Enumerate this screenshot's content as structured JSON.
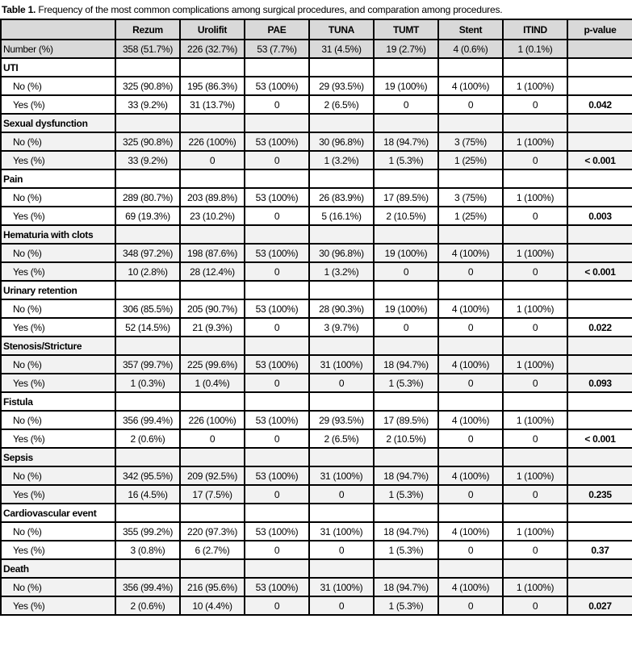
{
  "title": {
    "prefix": "Table 1.",
    "text": " Frequency of the most common complications among surgical procedures, and comparation among procedures."
  },
  "columns": [
    "",
    "Rezum",
    "Urolifit",
    "PAE",
    "TUNA",
    "TUMT",
    "Stent",
    "ITIND",
    "p-value"
  ],
  "number_row": {
    "label": "Number (%)",
    "values": [
      "358 (51.7%)",
      "226 (32.7%)",
      "53 (7.7%)",
      "31 (4.5%)",
      "19 (2.7%)",
      "4 (0.6%)",
      "1 (0.1%)",
      ""
    ]
  },
  "groups": [
    {
      "name": "UTI",
      "no": [
        "325 (90.8%)",
        "195 (86.3%)",
        "53 (100%)",
        "29 (93.5%)",
        "19 (100%)",
        "4 (100%)",
        "1 (100%)"
      ],
      "yes": [
        "33 (9.2%)",
        "31 (13.7%)",
        "0",
        "2 (6.5%)",
        "0",
        "0",
        "0"
      ],
      "p": "0.042"
    },
    {
      "name": "Sexual dysfunction",
      "no": [
        "325 (90.8%)",
        "226 (100%)",
        "53 (100%)",
        "30 (96.8%)",
        "18 (94.7%)",
        "3 (75%)",
        "1 (100%)"
      ],
      "yes": [
        "33 (9.2%)",
        "0",
        "0",
        "1 (3.2%)",
        "1 (5.3%)",
        "1 (25%)",
        "0"
      ],
      "p": "< 0.001"
    },
    {
      "name": "Pain",
      "no": [
        "289 (80.7%)",
        "203 (89.8%)",
        "53 (100%)",
        "26 (83.9%)",
        "17 (89.5%)",
        "3 (75%)",
        "1 (100%)"
      ],
      "yes": [
        "69 (19.3%)",
        "23 (10.2%)",
        "0",
        "5 (16.1%)",
        "2 (10.5%)",
        "1 (25%)",
        "0"
      ],
      "p": "0.003"
    },
    {
      "name": "Hematuria with clots",
      "no": [
        "348 (97.2%)",
        "198 (87.6%)",
        "53 (100%)",
        "30 (96.8%)",
        "19 (100%)",
        "4 (100%)",
        "1 (100%)"
      ],
      "yes": [
        "10 (2.8%)",
        "28 (12.4%)",
        "0",
        "1 (3.2%)",
        "0",
        "0",
        "0"
      ],
      "p": "< 0.001"
    },
    {
      "name": "Urinary retention",
      "no": [
        "306 (85.5%)",
        "205 (90.7%)",
        "53 (100%)",
        "28 (90.3%)",
        "19 (100%)",
        "4 (100%)",
        "1 (100%)"
      ],
      "yes": [
        "52 (14.5%)",
        "21 (9.3%)",
        "0",
        "3 (9.7%)",
        "0",
        "0",
        "0"
      ],
      "p": "0.022"
    },
    {
      "name": "Stenosis/Stricture",
      "no": [
        "357 (99.7%)",
        "225 (99.6%)",
        "53 (100%)",
        "31 (100%)",
        "18 (94.7%)",
        "4 (100%)",
        "1 (100%)"
      ],
      "yes": [
        "1 (0.3%)",
        "1 (0.4%)",
        "0",
        "0",
        "1 (5.3%)",
        "0",
        "0"
      ],
      "p": "0.093"
    },
    {
      "name": "Fistula",
      "no": [
        "356 (99.4%)",
        "226 (100%)",
        "53 (100%)",
        "29 (93.5%)",
        "17 (89.5%)",
        "4 (100%)",
        "1 (100%)"
      ],
      "yes": [
        "2 (0.6%)",
        "0",
        "0",
        "2 (6.5%)",
        "2 (10.5%)",
        "0",
        "0"
      ],
      "p": "< 0.001"
    },
    {
      "name": "Sepsis",
      "no": [
        "342 (95.5%)",
        "209 (92.5%)",
        "53 (100%)",
        "31 (100%)",
        "18 (94.7%)",
        "4 (100%)",
        "1 (100%)"
      ],
      "yes": [
        "16 (4.5%)",
        "17 (7.5%)",
        "0",
        "0",
        "1 (5.3%)",
        "0",
        "0"
      ],
      "p": "0.235"
    },
    {
      "name": "Cardiovascular event",
      "no": [
        "355 (99.2%)",
        "220 (97.3%)",
        "53 (100%)",
        "31 (100%)",
        "18 (94.7%)",
        "4 (100%)",
        "1 (100%)"
      ],
      "yes": [
        "3 (0.8%)",
        "6 (2.7%)",
        "0",
        "0",
        "1 (5.3%)",
        "0",
        "0"
      ],
      "p": "0.37"
    },
    {
      "name": "Death",
      "no": [
        "356 (99.4%)",
        "216 (95.6%)",
        "53 (100%)",
        "31 (100%)",
        "18 (94.7%)",
        "4 (100%)",
        "1 (100%)"
      ],
      "yes": [
        "2 (0.6%)",
        "10 (4.4%)",
        "0",
        "0",
        "1 (5.3%)",
        "0",
        "0"
      ],
      "p": "0.027"
    }
  ],
  "labels": {
    "no": "No (%)",
    "yes": "Yes (%)"
  }
}
